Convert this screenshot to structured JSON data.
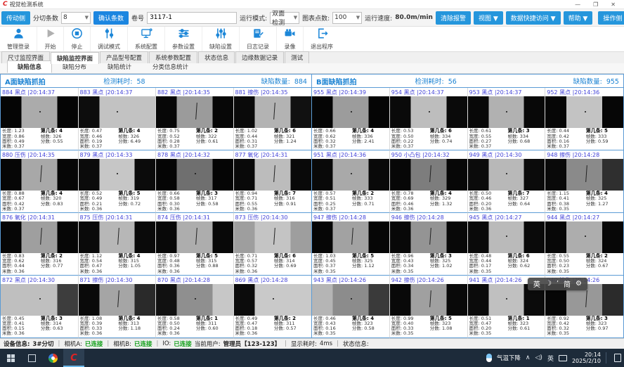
{
  "window": {
    "title": "视觉检测系统",
    "minimize": "—",
    "maximize": "❐",
    "close": "✕"
  },
  "toolbar1": {
    "side_left": "传动侧",
    "slit_count_label": "分切条数",
    "slit_count_value": "8",
    "confirm_btn": "确认条数",
    "roll_label": "卷号",
    "roll_value": "3117-1",
    "run_mode_label": "运行模式:",
    "run_mode_value": "双面检测",
    "chart_points_label": "图表点数:",
    "chart_points_value": "100",
    "speed_label": "运行速度:",
    "speed_value": "80.0m/min",
    "clear_alarm_btn": "清除报警",
    "view_btn": "视图 ▼",
    "quick_access_btn": "数据快捷访问 ▼",
    "help_btn": "帮助 ▼",
    "side_right": "操作侧"
  },
  "toolbar2": {
    "buttons": [
      {
        "label": "管理登录",
        "icon": "user-icon"
      },
      {
        "label": "开始",
        "icon": "play-icon"
      },
      {
        "label": "停止",
        "icon": "stop-icon"
      },
      {
        "label": "调试模式",
        "icon": "debug-mode-icon"
      },
      {
        "label": "系统配置",
        "icon": "system-config-icon"
      },
      {
        "label": "参数设置",
        "icon": "params-icon"
      },
      {
        "label": "缺陷设置",
        "icon": "defect-settings-icon"
      },
      {
        "label": "日志记录",
        "icon": "log-icon"
      },
      {
        "label": "录像",
        "icon": "record-icon"
      },
      {
        "label": "退出程序",
        "icon": "exit-icon"
      }
    ]
  },
  "tabs": {
    "main": [
      "尺寸监控界面",
      "缺陷监控界面",
      "产品型号配置",
      "系统参数配置",
      "状态信息",
      "边缘数据记录",
      "测试"
    ],
    "main_active": 1,
    "sub": [
      "缺陷信息",
      "缺陷分布",
      "缺陷统计",
      "分类信息统计"
    ],
    "sub_active": 0
  },
  "cell_labels": {
    "length": "长度:",
    "width": "宽度:",
    "area": "面积:",
    "meter": "米数:",
    "strip": "第几条:",
    "frame": "帧数:",
    "score": "分数:"
  },
  "panels": [
    {
      "title": "A面缺陷抓拍",
      "elapsed_label": "检测耗时:",
      "elapsed": "58",
      "count_label": "缺陷数量:",
      "count": "884",
      "cells": [
        {
          "id": "884",
          "type": "黑点",
          "time": "|20:14:37",
          "length": "1.23",
          "width": "0.86",
          "area": "0.49",
          "meter": "0.37",
          "strip": "4",
          "frame": "326",
          "score": "0.55",
          "img": [
            "#050505",
            "#ababab",
            "#050505"
          ],
          "mark": "dot"
        },
        {
          "id": "883",
          "type": "黑点",
          "time": "|20:14:37",
          "length": "0.47",
          "width": "0.46",
          "area": "0.19",
          "meter": "0.37",
          "strip": "4",
          "frame": "326",
          "score": "6.49",
          "img": [
            "#0d0d0d",
            "#c2c2c2",
            "#c2c2c2"
          ],
          "mark": "dot"
        },
        {
          "id": "882",
          "type": "黑点",
          "time": "|20:14:35",
          "length": "0.75",
          "width": "0.52",
          "area": "0.28",
          "meter": "0.37",
          "strip": "2",
          "frame": "322",
          "score": "0.61",
          "img": [
            "#070707",
            "#9b9b9b",
            "#070707"
          ],
          "mark": "streak"
        },
        {
          "id": "881",
          "type": "擦伤",
          "time": "|20:14:35",
          "length": "1.02",
          "width": "0.44",
          "area": "0.31",
          "meter": "0.37",
          "strip": "6",
          "frame": "321",
          "score": "1.24",
          "img": [
            "#0a0a0a",
            "#b3b3b3",
            "#111111"
          ],
          "mark": "streak"
        },
        {
          "id": "880",
          "type": "压伤",
          "time": "|20:14:35",
          "length": "0.88",
          "width": "0.67",
          "area": "0.42",
          "meter": "0.37",
          "strip": "4",
          "frame": "320",
          "score": "0.83",
          "img": [
            "#060606",
            "#a8a8a8",
            "#060606"
          ],
          "mark": "streak"
        },
        {
          "id": "879",
          "type": "黑点",
          "time": "|20:14:33",
          "length": "0.52",
          "width": "0.49",
          "area": "0.21",
          "meter": "0.36",
          "strip": "5",
          "frame": "319",
          "score": "0.72",
          "img": [
            "#0b0b0b",
            "#c6c6c6",
            "#0b0b0b"
          ],
          "mark": "dot"
        },
        {
          "id": "878",
          "type": "黑点",
          "time": "|20:14:32",
          "length": "0.66",
          "width": "0.58",
          "area": "0.30",
          "meter": "0.36",
          "strip": "3",
          "frame": "317",
          "score": "0.58",
          "img": [
            "#050505",
            "#6f6f6f",
            "#050505"
          ],
          "mark": "dot"
        },
        {
          "id": "877",
          "type": "氧化",
          "time": "|20:14:31",
          "length": "0.94",
          "width": "0.71",
          "area": "0.55",
          "meter": "0.36",
          "strip": "7",
          "frame": "316",
          "score": "0.91",
          "img": [
            "#090909",
            "#bcbcbc",
            "#090909"
          ],
          "mark": "streak"
        },
        {
          "id": "876",
          "type": "氧化",
          "time": "|20:14:31",
          "length": "0.83",
          "width": "0.62",
          "area": "0.44",
          "meter": "0.36",
          "strip": "2",
          "frame": "316",
          "score": "0.77",
          "img": [
            "#060606",
            "#9f9f9f",
            "#060606"
          ],
          "mark": "streak"
        },
        {
          "id": "875",
          "type": "压伤",
          "time": "|20:14:31",
          "length": "1.12",
          "width": "0.54",
          "area": "0.47",
          "meter": "0.36",
          "strip": "4",
          "frame": "315",
          "score": "1.05",
          "img": [
            "#0a0a0a",
            "#b7b7b7",
            "#0a0a0a"
          ],
          "mark": "streak"
        },
        {
          "id": "874",
          "type": "压伤",
          "time": "|20:14:31",
          "length": "0.97",
          "width": "0.48",
          "area": "0.36",
          "meter": "0.36",
          "strip": "5",
          "frame": "315",
          "score": "0.88",
          "img": [
            "#080808",
            "#adadad",
            "#080808"
          ],
          "mark": "streak"
        },
        {
          "id": "873",
          "type": "压伤",
          "time": "|20:14:30",
          "length": "0.71",
          "width": "0.57",
          "area": "0.32",
          "meter": "0.36",
          "strip": "6",
          "frame": "314",
          "score": "0.69",
          "img": [
            "#9e9e9e",
            "#c4c4c4",
            "#9e9e9e"
          ],
          "mark": "streak"
        },
        {
          "id": "872",
          "type": "黑点",
          "time": "|20:14:30",
          "length": "0.45",
          "width": "0.41",
          "area": "0.15",
          "meter": "0.36",
          "strip": "3",
          "frame": "314",
          "score": "0.63",
          "img": [
            "#bfbfbf",
            "#bfbfbf",
            "#3d3d3d"
          ],
          "mark": "dot"
        },
        {
          "id": "871",
          "type": "擦伤",
          "time": "|20:14:30",
          "length": "1.08",
          "width": "0.39",
          "area": "0.33",
          "meter": "0.36",
          "strip": "4",
          "frame": "313",
          "score": "1.18",
          "img": [
            "#0a0a0a",
            "#a5a5a5",
            "#2a2a2a"
          ],
          "mark": "streak"
        },
        {
          "id": "870",
          "type": "黑点",
          "time": "|20:14:28",
          "length": "0.58",
          "width": "0.50",
          "area": "0.24",
          "meter": "0.36",
          "strip": "1",
          "frame": "311",
          "score": "0.60",
          "img": [
            "#111111",
            "#8f8f8f",
            "#c7c7c7"
          ],
          "mark": "dot"
        },
        {
          "id": "869",
          "type": "黑点",
          "time": "|20:14:28",
          "length": "0.49",
          "width": "0.47",
          "area": "0.18",
          "meter": "0.36",
          "strip": "2",
          "frame": "311",
          "score": "0.57",
          "img": [
            "#0c0c0c",
            "#c9c9c9",
            "#c9c9c9"
          ],
          "mark": "dot"
        }
      ]
    },
    {
      "title": "B面缺陷抓拍",
      "elapsed_label": "检测耗时:",
      "elapsed": "56",
      "count_label": "缺陷数量:",
      "count": "955",
      "cells": [
        {
          "id": "955",
          "type": "黑点",
          "time": "|20:14:39",
          "length": "0.66",
          "width": "0.62",
          "area": "0.32",
          "meter": "0.37",
          "strip": "4",
          "frame": "336",
          "score": "2.41",
          "img": [
            "#050505",
            "#9c9c9c",
            "#050505"
          ],
          "mark": "dot"
        },
        {
          "id": "954",
          "type": "黑点",
          "time": "|20:14:37",
          "length": "0.53",
          "width": "0.50",
          "area": "0.22",
          "meter": "0.37",
          "strip": "6",
          "frame": "334",
          "score": "0.74",
          "img": [
            "#0a0a0a",
            "#bdbdbd",
            "#0a0a0a"
          ],
          "mark": "dot"
        },
        {
          "id": "953",
          "type": "黑点",
          "time": "|20:14:37",
          "length": "0.61",
          "width": "0.55",
          "area": "0.27",
          "meter": "0.37",
          "strip": "3",
          "frame": "334",
          "score": "0.68",
          "img": [
            "#080808",
            "#b1b1b1",
            "#080808"
          ],
          "mark": "dot"
        },
        {
          "id": "952",
          "type": "黑点",
          "time": "|20:14:36",
          "length": "0.44",
          "width": "0.42",
          "area": "0.16",
          "meter": "0.37",
          "strip": "5",
          "frame": "333",
          "score": "0.59",
          "img": [
            "#060606",
            "#c3c3c3",
            "#060606"
          ],
          "mark": "dot"
        },
        {
          "id": "951",
          "type": "黑点",
          "time": "|20:14:36",
          "length": "0.57",
          "width": "0.51",
          "area": "0.25",
          "meter": "0.37",
          "strip": "2",
          "frame": "333",
          "score": "0.71",
          "img": [
            "#090909",
            "#a9a9a9",
            "#090909"
          ],
          "mark": "dot"
        },
        {
          "id": "950",
          "type": "小凸包",
          "time": "|20:14:32",
          "length": "0.78",
          "width": "0.69",
          "area": "0.46",
          "meter": "0.36",
          "strip": "4",
          "frame": "329",
          "score": "1.32",
          "img": [
            "#070707",
            "#7d7d7d",
            "#070707"
          ],
          "mark": "streak"
        },
        {
          "id": "949",
          "type": "黑点",
          "time": "|20:14:30",
          "length": "0.50",
          "width": "0.46",
          "area": "0.20",
          "meter": "0.36",
          "strip": "7",
          "frame": "327",
          "score": "0.64",
          "img": [
            "#0b0b0b",
            "#b8b8b8",
            "#0b0b0b"
          ],
          "mark": "dot"
        },
        {
          "id": "948",
          "type": "擦伤",
          "time": "|20:14:28",
          "length": "1.15",
          "width": "0.41",
          "area": "0.38",
          "meter": "0.35",
          "strip": "4",
          "frame": "325",
          "score": "1.27",
          "img": [
            "#090909",
            "#8a8a8a",
            "#2f2f2f"
          ],
          "mark": "streak"
        },
        {
          "id": "947",
          "type": "擦伤",
          "time": "|20:14:28",
          "length": "1.03",
          "width": "0.45",
          "area": "0.37",
          "meter": "0.35",
          "strip": "5",
          "frame": "325",
          "score": "1.12",
          "img": [
            "#060606",
            "#a2a2a2",
            "#060606"
          ],
          "mark": "streak"
        },
        {
          "id": "946",
          "type": "擦伤",
          "time": "|20:14:28",
          "length": "0.96",
          "width": "0.43",
          "area": "0.34",
          "meter": "0.35",
          "strip": "3",
          "frame": "325",
          "score": "1.02",
          "img": [
            "#080808",
            "#949494",
            "#080808"
          ],
          "mark": "streak"
        },
        {
          "id": "945",
          "type": "黑点",
          "time": "|20:14:27",
          "length": "0.48",
          "width": "0.44",
          "area": "0.17",
          "meter": "0.35",
          "strip": "6",
          "frame": "324",
          "score": "0.62",
          "img": [
            "#0a0a0a",
            "#bababa",
            "#0a0a0a"
          ],
          "mark": "dot"
        },
        {
          "id": "944",
          "type": "黑点",
          "time": "|20:14:27",
          "length": "0.55",
          "width": "0.50",
          "area": "0.23",
          "meter": "0.35",
          "strip": "2",
          "frame": "324",
          "score": "0.67",
          "img": [
            "#070707",
            "#adadad",
            "#070707"
          ],
          "mark": "dot"
        },
        {
          "id": "943",
          "type": "黑点",
          "time": "|20:14:26",
          "length": "0.46",
          "width": "0.43",
          "area": "0.16",
          "meter": "0.35",
          "strip": "4",
          "frame": "323",
          "score": "0.58",
          "img": [
            "#b5b5b5",
            "#8c8c8c",
            "#3a3a3a"
          ],
          "mark": "dot"
        },
        {
          "id": "942",
          "type": "擦伤",
          "time": "|20:14:26",
          "length": "0.99",
          "width": "0.40",
          "area": "0.33",
          "meter": "0.35",
          "strip": "5",
          "frame": "323",
          "score": "1.08",
          "img": [
            "#090909",
            "#a0a0a0",
            "#090909"
          ],
          "mark": "streak"
        },
        {
          "id": "941",
          "type": "黑点",
          "time": "|20:14:26",
          "length": "0.51",
          "width": "0.47",
          "area": "0.20",
          "meter": "0.35",
          "strip": "1",
          "frame": "323",
          "score": "0.61",
          "img": [
            "#0b0b0b",
            "#c0c0c0",
            "#0b0b0b"
          ],
          "mark": "dot"
        },
        {
          "id": "940",
          "type": "擦伤",
          "time": "|20:14:26",
          "length": "0.92",
          "width": "0.42",
          "area": "0.32",
          "meter": "0.35",
          "strip": "3",
          "frame": "323",
          "score": "0.97",
          "img": [
            "#060606",
            "#989898",
            "#2b2b2b"
          ],
          "mark": "streak"
        }
      ]
    }
  ],
  "ime_bar": {
    "items": [
      "英",
      "☽",
      "’",
      "简",
      "⚙"
    ]
  },
  "status_bar": {
    "device_label": "设备信息:",
    "device": "3#分切",
    "camA_label": "相机A:",
    "camA": "已连接",
    "camB_label": "相机B:",
    "camB": "已连接",
    "io_label": "IO:",
    "io": "已连接",
    "user_label": "当前用户:",
    "user": "管理员【123-123】",
    "display_label": "显示耗时:",
    "display": "4ms",
    "state_label": "状态信息:"
  },
  "taskbar": {
    "weather": "气温下降",
    "lang": "英",
    "time": "20:14",
    "date": "2025/2/10"
  },
  "colors": {
    "accent_blue": "#2596dc",
    "cell_title_blue": "#4343d8",
    "panel_blue": "#1b82d2",
    "connected_green": "#11a019",
    "taskbar_bg": "#1d2b3a"
  }
}
